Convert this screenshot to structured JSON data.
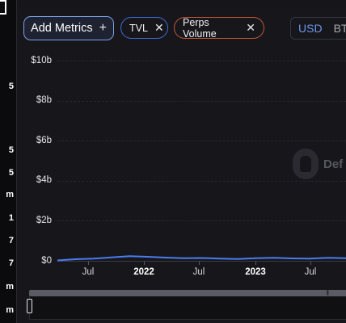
{
  "sidebar": {
    "values": [
      "5",
      "5",
      "m",
      "1",
      "7",
      "7",
      "m",
      "m"
    ]
  },
  "toolbar": {
    "add_metrics_label": "Add Metrics",
    "add_icon": "plus-icon",
    "chips": [
      {
        "label": "TVL",
        "color": "#3f6bd8"
      },
      {
        "label": "Perps Volume",
        "color": "#c2573a"
      }
    ],
    "close_icon": "close-icon",
    "currency_options": [
      "USD",
      "BTC"
    ],
    "currency_visible": [
      "USD",
      "BT"
    ],
    "selected_currency": "USD"
  },
  "chart_data": {
    "type": "line",
    "y_ticks": [
      "$10b",
      "$8b",
      "$6b",
      "$4b",
      "$2b",
      "$0"
    ],
    "ylim": [
      0,
      10000000000
    ],
    "x_ticks": [
      "Jul",
      "2022",
      "Jul",
      "2023",
      "Jul"
    ],
    "x_ticks_bold": [
      false,
      true,
      false,
      true,
      false
    ],
    "series": [
      {
        "color": "#4a7cf0",
        "x": [
          "2021-04",
          "2021-06",
          "2021-08",
          "2021-10",
          "2021-12",
          "2022-02",
          "2022-04",
          "2022-06",
          "2022-08",
          "2022-10",
          "2022-12",
          "2023-02",
          "2023-04",
          "2023-06",
          "2023-08",
          "2023-10",
          "2023-12"
        ],
        "values": [
          20000000,
          80000000,
          110000000,
          170000000,
          230000000,
          200000000,
          160000000,
          130000000,
          140000000,
          110000000,
          90000000,
          130000000,
          150000000,
          120000000,
          110000000,
          150000000,
          130000000
        ]
      }
    ],
    "grid": true,
    "legend": "none"
  },
  "watermark": {
    "icon": "defillama-logo",
    "text": "Def"
  },
  "brush": {
    "grip_icon": "grip-icon"
  }
}
